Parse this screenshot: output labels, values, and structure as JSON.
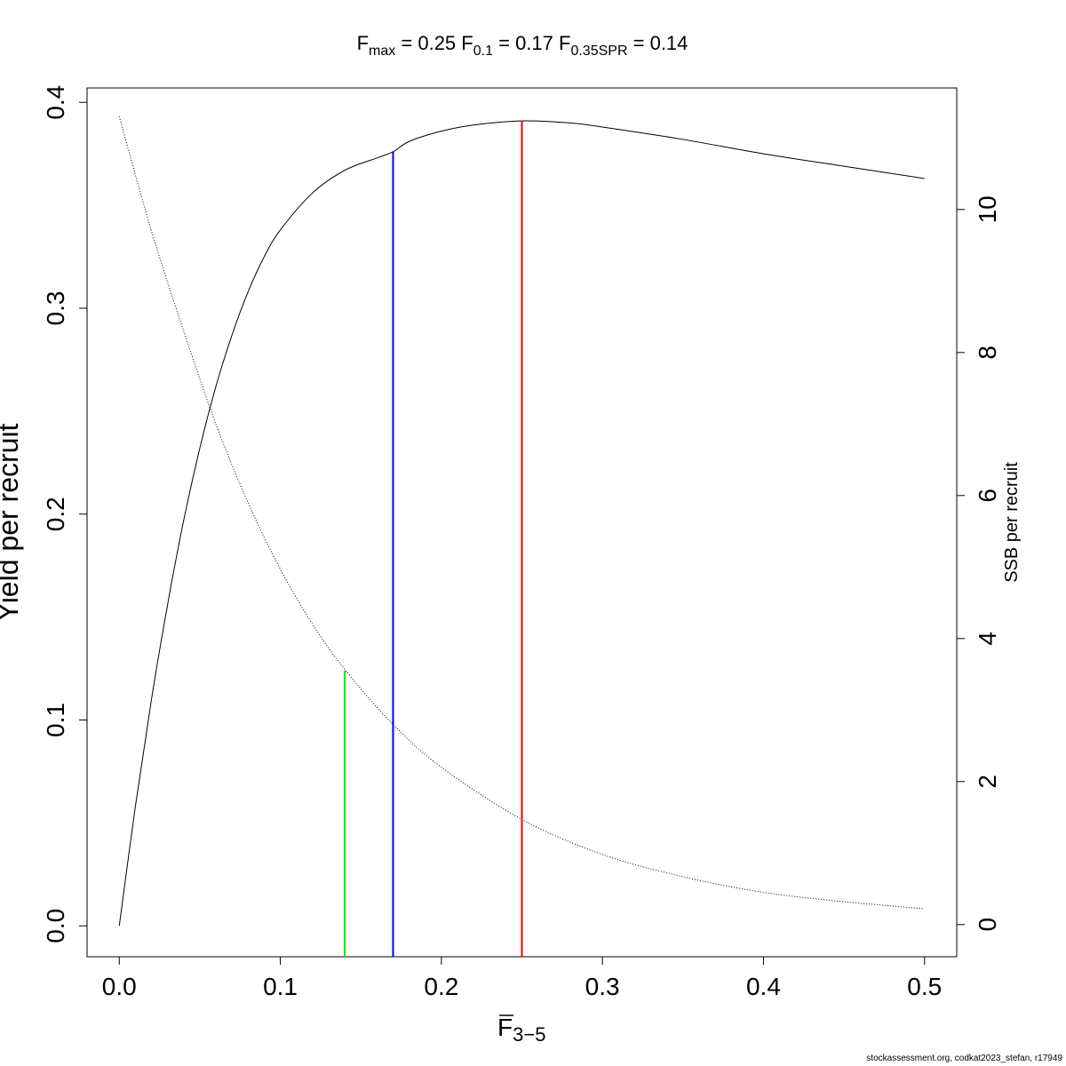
{
  "chart_data": {
    "type": "line",
    "title": {
      "fmax": {
        "sub": "max",
        "value": "0.25"
      },
      "f01": {
        "sub": "0.1",
        "value": "0.17"
      },
      "fspr": {
        "sub": "0.35SPR",
        "value": "0.14"
      }
    },
    "xlabel": {
      "main": "F",
      "sub": "3−5"
    },
    "ylabel": "Yield per recruit",
    "y2label": "SSB per recruit",
    "xlim": [
      -0.02,
      0.52
    ],
    "ylim": [
      -0.015,
      0.407
    ],
    "y2lim": [
      -0.45,
      11.7
    ],
    "x_ticks": [
      0.0,
      0.1,
      0.2,
      0.3,
      0.4,
      0.5
    ],
    "x_tick_labels": [
      "0.0",
      "0.1",
      "0.2",
      "0.3",
      "0.4",
      "0.5"
    ],
    "y_ticks": [
      0.0,
      0.1,
      0.2,
      0.3,
      0.4
    ],
    "y_tick_labels": [
      "0.0",
      "0.1",
      "0.2",
      "0.3",
      "0.4"
    ],
    "y2_ticks": [
      0,
      2,
      4,
      6,
      8,
      10
    ],
    "y2_tick_labels": [
      "0",
      "2",
      "4",
      "6",
      "8",
      "10"
    ],
    "series": [
      {
        "axis": "left",
        "style": "solid",
        "color": "#000000",
        "x": [
          0.0,
          0.01,
          0.02,
          0.03,
          0.04,
          0.05,
          0.06,
          0.07,
          0.08,
          0.09,
          0.1,
          0.12,
          0.14,
          0.16,
          0.17,
          0.18,
          0.2,
          0.22,
          0.25,
          0.28,
          0.3,
          0.35,
          0.4,
          0.45,
          0.5
        ],
        "y": [
          0.0,
          0.058,
          0.11,
          0.156,
          0.197,
          0.232,
          0.262,
          0.287,
          0.308,
          0.325,
          0.338,
          0.356,
          0.367,
          0.373,
          0.376,
          0.381,
          0.386,
          0.389,
          0.391,
          0.39,
          0.388,
          0.382,
          0.375,
          0.369,
          0.363
        ]
      },
      {
        "axis": "right",
        "style": "dotted",
        "color": "#000000",
        "x": [
          0.0,
          0.02,
          0.04,
          0.06,
          0.08,
          0.1,
          0.12,
          0.14,
          0.17,
          0.2,
          0.25,
          0.3,
          0.35,
          0.4,
          0.45,
          0.5
        ],
        "y": [
          11.3,
          9.7,
          8.3,
          7.0,
          5.9,
          4.97,
          4.2,
          3.57,
          2.8,
          2.2,
          1.47,
          0.98,
          0.67,
          0.45,
          0.32,
          0.22
        ]
      }
    ],
    "reference_lines": [
      {
        "x": 0.14,
        "color": "#00ee00",
        "y_top": 0.124
      },
      {
        "x": 0.17,
        "color": "#0000ff",
        "y_top": 0.376
      },
      {
        "x": 0.25,
        "color": "#ee0000",
        "y_top": 0.391
      }
    ],
    "grid": false,
    "legend": "none"
  },
  "footer": "stockassessment.org, codkat2023_stefan, r17949"
}
